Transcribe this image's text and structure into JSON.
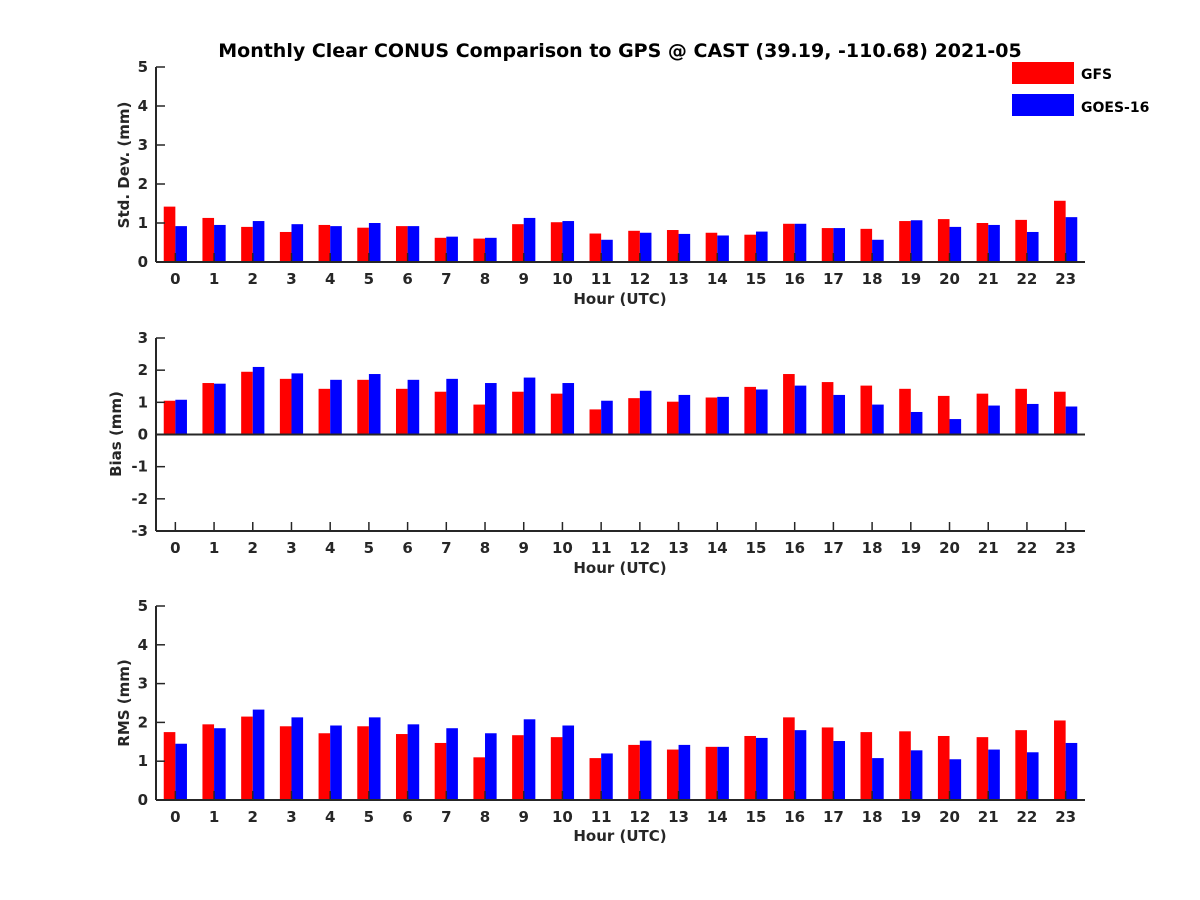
{
  "figure": {
    "title": "Monthly Clear CONUS Comparison to GPS @ CAST (39.19, -110.68) 2021-05"
  },
  "legend": {
    "placement": "top-right",
    "entries": [
      {
        "name": "GFS",
        "color": "#ff0000"
      },
      {
        "name": "GOES-16",
        "color": "#0000ff"
      }
    ]
  },
  "chart_data": [
    {
      "type": "bar",
      "xlabel": "Hour (UTC)",
      "ylabel": "Std. Dev. (mm)",
      "ylim": [
        0,
        5
      ],
      "yticks": [
        0,
        1,
        2,
        3,
        4,
        5
      ],
      "grid": false,
      "categories": [
        "0",
        "1",
        "2",
        "3",
        "4",
        "5",
        "6",
        "7",
        "8",
        "9",
        "10",
        "11",
        "12",
        "13",
        "14",
        "15",
        "16",
        "17",
        "18",
        "19",
        "20",
        "21",
        "22",
        "23"
      ],
      "series": [
        {
          "name": "GFS",
          "color": "#ff0000",
          "values": [
            1.42,
            1.13,
            0.9,
            0.77,
            0.95,
            0.88,
            0.92,
            0.62,
            0.6,
            0.97,
            1.02,
            0.73,
            0.8,
            0.82,
            0.75,
            0.7,
            0.98,
            0.87,
            0.85,
            1.05,
            1.1,
            1.0,
            1.08,
            1.57
          ]
        },
        {
          "name": "GOES-16",
          "color": "#0000ff",
          "values": [
            0.92,
            0.95,
            1.05,
            0.97,
            0.92,
            1.0,
            0.92,
            0.65,
            0.62,
            1.13,
            1.05,
            0.57,
            0.75,
            0.72,
            0.68,
            0.78,
            0.98,
            0.87,
            0.57,
            1.07,
            0.9,
            0.95,
            0.77,
            1.15
          ]
        }
      ]
    },
    {
      "type": "bar",
      "xlabel": "Hour (UTC)",
      "ylabel": "Bias (mm)",
      "ylim": [
        -3,
        3
      ],
      "yticks": [
        -3,
        -2,
        -1,
        0,
        1,
        2,
        3
      ],
      "grid": false,
      "categories": [
        "0",
        "1",
        "2",
        "3",
        "4",
        "5",
        "6",
        "7",
        "8",
        "9",
        "10",
        "11",
        "12",
        "13",
        "14",
        "15",
        "16",
        "17",
        "18",
        "19",
        "20",
        "21",
        "22",
        "23"
      ],
      "series": [
        {
          "name": "GFS",
          "color": "#ff0000",
          "values": [
            1.05,
            1.6,
            1.95,
            1.73,
            1.42,
            1.7,
            1.42,
            1.33,
            0.93,
            1.33,
            1.27,
            0.78,
            1.13,
            1.02,
            1.15,
            1.48,
            1.88,
            1.63,
            1.52,
            1.42,
            1.2,
            1.27,
            1.42,
            1.33
          ]
        },
        {
          "name": "GOES-16",
          "color": "#0000ff",
          "values": [
            1.08,
            1.58,
            2.1,
            1.9,
            1.7,
            1.88,
            1.7,
            1.73,
            1.6,
            1.77,
            1.6,
            1.05,
            1.36,
            1.23,
            1.17,
            1.4,
            1.52,
            1.23,
            0.93,
            0.7,
            0.48,
            0.9,
            0.95,
            0.87
          ]
        }
      ]
    },
    {
      "type": "bar",
      "xlabel": "Hour (UTC)",
      "ylabel": "RMS (mm)",
      "ylim": [
        0,
        5
      ],
      "yticks": [
        0,
        1,
        2,
        3,
        4,
        5
      ],
      "grid": false,
      "categories": [
        "0",
        "1",
        "2",
        "3",
        "4",
        "5",
        "6",
        "7",
        "8",
        "9",
        "10",
        "11",
        "12",
        "13",
        "14",
        "15",
        "16",
        "17",
        "18",
        "19",
        "20",
        "21",
        "22",
        "23"
      ],
      "series": [
        {
          "name": "GFS",
          "color": "#ff0000",
          "values": [
            1.75,
            1.95,
            2.15,
            1.9,
            1.72,
            1.9,
            1.7,
            1.47,
            1.1,
            1.67,
            1.62,
            1.08,
            1.42,
            1.3,
            1.37,
            1.65,
            2.13,
            1.87,
            1.75,
            1.77,
            1.65,
            1.62,
            1.8,
            2.05
          ]
        },
        {
          "name": "GOES-16",
          "color": "#0000ff",
          "values": [
            1.45,
            1.85,
            2.33,
            2.13,
            1.92,
            2.13,
            1.95,
            1.85,
            1.72,
            2.08,
            1.92,
            1.2,
            1.53,
            1.42,
            1.37,
            1.6,
            1.8,
            1.52,
            1.08,
            1.28,
            1.05,
            1.3,
            1.23,
            1.47
          ]
        }
      ]
    }
  ]
}
